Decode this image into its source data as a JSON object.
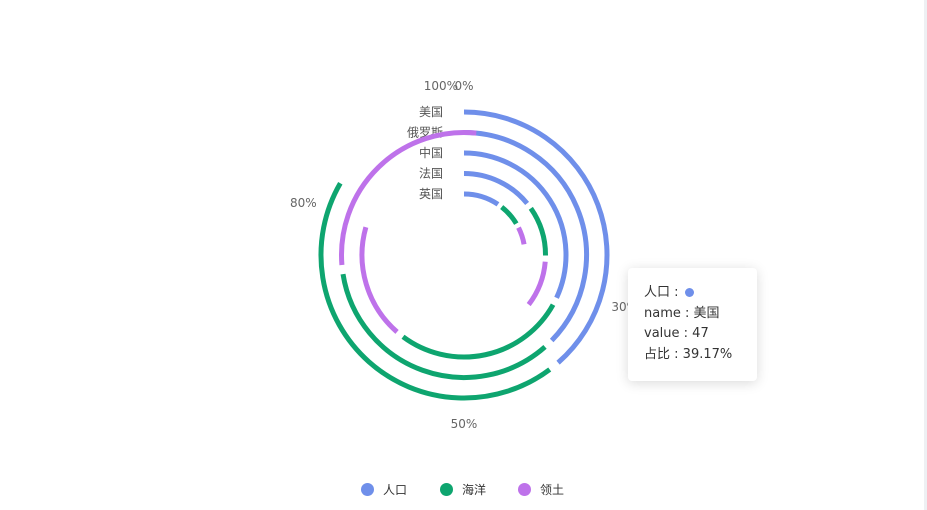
{
  "chart_data": {
    "type": "radial-bar",
    "axis_ticks": [
      "0%",
      "30%",
      "50%",
      "80%",
      "100%"
    ],
    "axis_tick_values": [
      0,
      30,
      50,
      80,
      100
    ],
    "categories": [
      "美国",
      "俄罗斯",
      "中国",
      "法国",
      "英国"
    ],
    "series": [
      {
        "name": "人口",
        "color": "#6f8fea",
        "values": [
          39.17,
          37.9,
          32.5,
          14.7,
          10.0
        ]
      },
      {
        "name": "海洋",
        "color": "#0ea56f",
        "values": [
          44.8,
          35.2,
          28.3,
          11.0,
          7.0
        ]
      },
      {
        "name": "领土",
        "color": "#be72ea",
        "values": [
          0,
          29.1,
          19.2,
          10.3,
          5.8
        ]
      }
    ],
    "legend_position": "bottom-center"
  },
  "tooltip": {
    "series_name": "人口",
    "series_color": "#6f8fea",
    "name_label": "name",
    "name_value": "美国",
    "value_label": "value",
    "value_value": "47",
    "ratio_label": "占比",
    "ratio_value": "39.17%"
  },
  "legend": [
    {
      "name": "人口",
      "color": "#6f8fea",
      "icon": "circle-icon"
    },
    {
      "name": "海洋",
      "color": "#0ea56f",
      "icon": "circle-icon"
    },
    {
      "name": "领土",
      "color": "#be72ea",
      "icon": "circle-icon"
    }
  ]
}
